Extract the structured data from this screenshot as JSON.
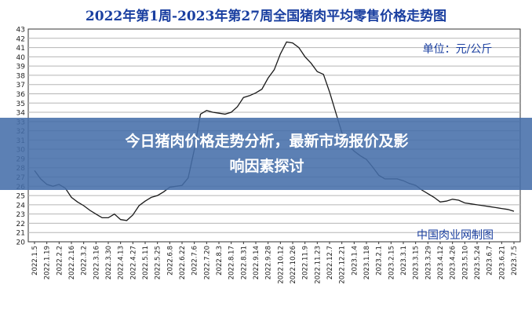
{
  "chart_data": {
    "type": "line",
    "title": "2022年第1周-2023年第27周全国猪肉平均零售价格走势图",
    "unit_label": "单位：元/公斤",
    "watermark": "中国肉业网制图",
    "xlabel": "",
    "ylabel": "",
    "ylim": [
      20,
      43
    ],
    "yticks": [
      20,
      21,
      22,
      23,
      24,
      25,
      26,
      27,
      28,
      29,
      30,
      31,
      32,
      33,
      34,
      35,
      36,
      37,
      38,
      39,
      40,
      41,
      42,
      43
    ],
    "grid": true,
    "x_tick_labels": [
      "2022.1.5",
      "2022.1.19",
      "2022.2.2",
      "2022.2.16",
      "2022.3.2",
      "2022.3.16",
      "2022.3.30",
      "2022.4.13",
      "2022.4.27",
      "2022.5.11",
      "2022.5.25",
      "2022.6.8",
      "2022.6.22",
      "2022.7.6",
      "2022.7.20",
      "2022.8.3",
      "2022.8.17",
      "2022.8.31",
      "2022.9.14",
      "2022.9.28",
      "2022.10.12",
      "2022.10.26",
      "2022.11.9",
      "2022.11.23",
      "2022.12.7",
      "2022.12.21",
      "2023.1.4",
      "2023.1.18",
      "2023.2.1",
      "2023.2.15",
      "2023.3.1",
      "2023.3.15",
      "2023.3.29",
      "2023.4.12",
      "2023.4.26",
      "2023.5.10",
      "2023.5.24",
      "2023.6.7",
      "2023.6.21",
      "2023.7.5"
    ],
    "series": [
      {
        "name": "",
        "color": "#1a1a1a",
        "x": [
          "2022.1.5",
          "2022.1.12",
          "2022.1.19",
          "2022.1.26",
          "2022.2.2",
          "2022.2.9",
          "2022.2.16",
          "2022.2.23",
          "2022.3.2",
          "2022.3.9",
          "2022.3.16",
          "2022.3.23",
          "2022.3.30",
          "2022.4.6",
          "2022.4.13",
          "2022.4.20",
          "2022.4.27",
          "2022.5.4",
          "2022.5.11",
          "2022.5.18",
          "2022.5.25",
          "2022.6.1",
          "2022.6.8",
          "2022.6.15",
          "2022.6.22",
          "2022.6.29",
          "2022.7.6",
          "2022.7.13",
          "2022.7.20",
          "2022.7.27",
          "2022.8.3",
          "2022.8.10",
          "2022.8.17",
          "2022.8.24",
          "2022.8.31",
          "2022.9.7",
          "2022.9.14",
          "2022.9.21",
          "2022.9.28",
          "2022.10.5",
          "2022.10.12",
          "2022.10.19",
          "2022.10.26",
          "2022.11.2",
          "2022.11.9",
          "2022.11.16",
          "2022.11.23",
          "2022.11.30",
          "2022.12.7",
          "2022.12.14",
          "2022.12.21",
          "2022.12.28",
          "2023.1.4",
          "2023.1.11",
          "2023.1.18",
          "2023.1.25",
          "2023.2.1",
          "2023.2.8",
          "2023.2.15",
          "2023.2.22",
          "2023.3.1",
          "2023.3.8",
          "2023.3.15",
          "2023.3.22",
          "2023.3.29",
          "2023.4.5",
          "2023.4.12",
          "2023.4.19",
          "2023.4.26",
          "2023.5.3",
          "2023.5.10",
          "2023.5.17",
          "2023.5.24",
          "2023.5.31",
          "2023.6.7",
          "2023.6.14",
          "2023.6.21",
          "2023.6.28",
          "2023.7.5"
        ],
        "y": [
          27.7,
          26.8,
          26.2,
          26.0,
          26.2,
          25.8,
          24.8,
          24.3,
          23.9,
          23.4,
          23.0,
          22.6,
          22.6,
          23.0,
          22.4,
          22.3,
          22.9,
          23.9,
          24.4,
          24.8,
          25.0,
          25.4,
          25.9,
          26.0,
          26.1,
          26.9,
          30.0,
          33.8,
          34.2,
          34.0,
          33.9,
          33.8,
          34.0,
          34.6,
          35.6,
          35.8,
          36.1,
          36.5,
          37.7,
          38.6,
          40.3,
          41.6,
          41.5,
          41.0,
          40.0,
          39.3,
          38.4,
          38.1,
          36.2,
          34.0,
          31.8,
          30.5,
          29.8,
          29.3,
          28.9,
          28.1,
          27.2,
          26.8,
          26.8,
          26.8,
          26.6,
          26.3,
          26.1,
          25.6,
          25.2,
          24.8,
          24.3,
          24.4,
          24.6,
          24.5,
          24.2,
          24.1,
          24.0,
          23.9,
          23.8,
          23.7,
          23.6,
          23.5,
          23.3
        ]
      }
    ]
  },
  "banner": {
    "line1": "今日猪肉价格走势分析，最新市场报价及影",
    "line2": "响因素探讨"
  }
}
